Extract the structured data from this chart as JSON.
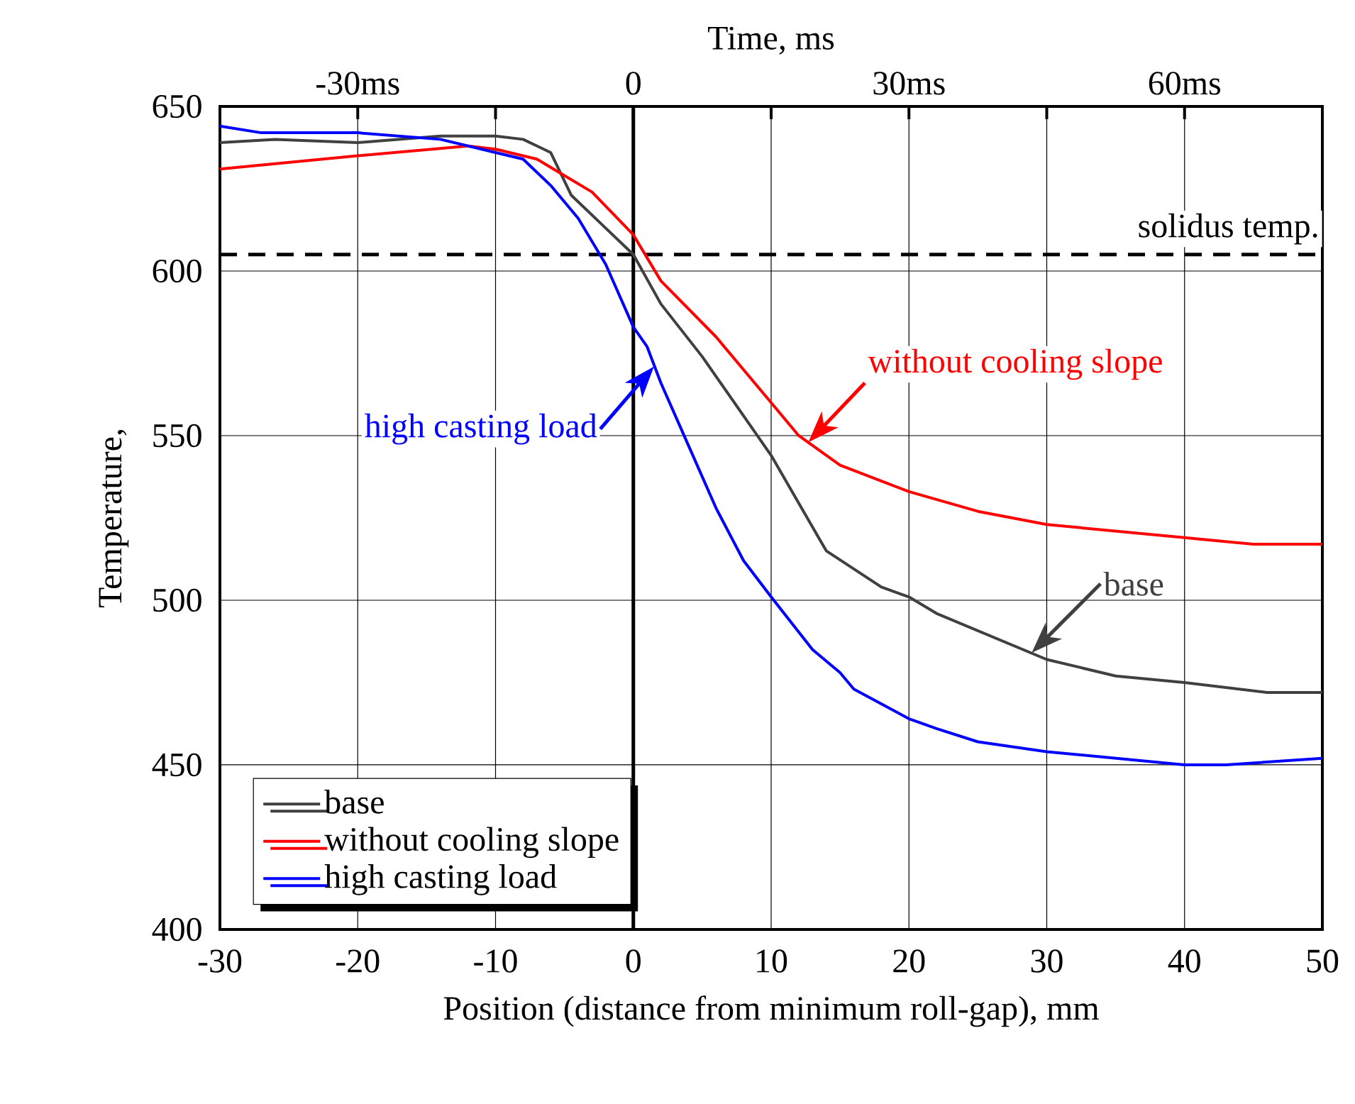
{
  "chart_data": {
    "type": "line",
    "xlabel": "Position (distance from minimum roll-gap), mm",
    "ylabel": "Temperature,",
    "x2label": "Time, ms",
    "xlim": [
      -30,
      50
    ],
    "xticks": [
      -30,
      -20,
      -10,
      0,
      10,
      20,
      30,
      40,
      50
    ],
    "ylim": [
      400,
      650
    ],
    "yticks": [
      400,
      450,
      500,
      550,
      600,
      650
    ],
    "x2lim": [
      -45,
      75
    ],
    "x2ticks": [
      {
        "value": -30,
        "label": "-30ms"
      },
      {
        "value": -15,
        "label": null
      },
      {
        "value": 0,
        "label": "0"
      },
      {
        "value": 15,
        "label": null
      },
      {
        "value": 30,
        "label": "30ms"
      },
      {
        "value": 45,
        "label": null
      },
      {
        "value": 60,
        "label": "60ms"
      }
    ],
    "grid": true,
    "legend": "bottom left",
    "marker": "none",
    "line_style": "solid",
    "series": [
      {
        "name": "base",
        "color": "#404040",
        "x": [
          -30,
          -26,
          -20,
          -14,
          -10,
          -8,
          -6,
          -4.5,
          -2,
          0,
          2,
          5,
          10,
          14,
          18,
          20,
          22,
          30,
          35,
          40,
          46,
          50
        ],
        "values": [
          639,
          640,
          639,
          641,
          641,
          640,
          636,
          623,
          613,
          605,
          590,
          574,
          544,
          515,
          504,
          501,
          496,
          482,
          477,
          475,
          472,
          472
        ]
      },
      {
        "name": "without cooling slope",
        "color": "#ff0000",
        "x": [
          -30,
          -20,
          -12,
          -10,
          -7,
          -5,
          -3,
          0,
          2,
          6,
          10,
          12,
          15,
          20,
          25,
          30,
          40,
          45,
          50
        ],
        "values": [
          631,
          635,
          638,
          637,
          634,
          629,
          624,
          611,
          597,
          580,
          560,
          550,
          541,
          533,
          527,
          523,
          519,
          517,
          517
        ]
      },
      {
        "name": "high casting load",
        "color": "#0000ff",
        "x": [
          -30,
          -27,
          -20,
          -14,
          -10,
          -8,
          -6,
          -4,
          -2,
          0,
          1,
          2,
          4,
          6,
          8,
          10,
          13,
          15,
          16,
          20,
          22,
          25,
          30,
          40,
          43,
          50
        ],
        "values": [
          644,
          642,
          642,
          640,
          636,
          634,
          626,
          616,
          602,
          583,
          577,
          566,
          547,
          528,
          512,
          501,
          485,
          478,
          473,
          464,
          461,
          457,
          454,
          450,
          450,
          452
        ]
      }
    ],
    "ref_lines": [
      {
        "axis": "y",
        "value": 605,
        "label": "solidus temp.",
        "line_style": "dashed"
      },
      {
        "axis": "x",
        "value": 0,
        "line_style": "solid"
      }
    ],
    "annotations": [
      {
        "text": "without cooling slope",
        "x": 12.7,
        "y": 548
      },
      {
        "text": "high casting load",
        "x": 1.5,
        "y": 571
      },
      {
        "text": "base",
        "x": 28.9,
        "y": 484
      }
    ]
  }
}
